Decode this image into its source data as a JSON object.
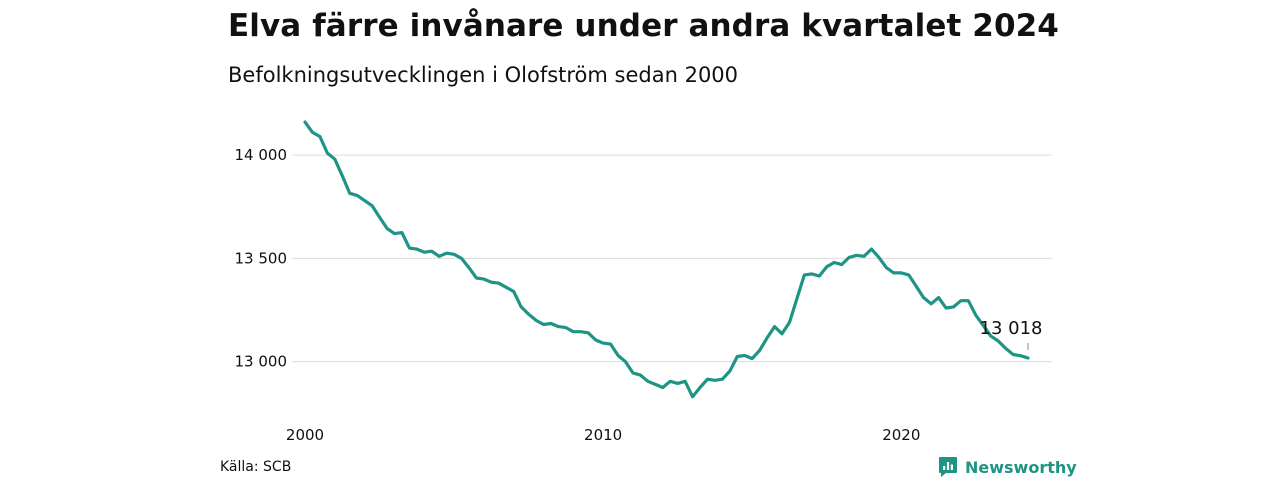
{
  "title": "Elva färre invånare under andra kvartalet 2024",
  "subtitle": "Befolkningsutvecklingen i Olofström sedan 2000",
  "source": "Källa: SCB",
  "brand": {
    "name": "Newsworthy",
    "icon": "newsworthy-logo-icon",
    "color": "#1e9485"
  },
  "chart_data": {
    "type": "line",
    "title": "Elva färre invånare under andra kvartalet 2024",
    "subtitle": "Befolkningsutvecklingen i Olofström sedan 2000",
    "xlabel": "",
    "ylabel": "",
    "xlim": [
      2000.0,
      2024.5
    ],
    "ylim": [
      12800,
      14170
    ],
    "x_ticks": [
      2000,
      2010,
      2020
    ],
    "x_tick_labels": [
      "2000",
      "2010",
      "2020"
    ],
    "y_ticks": [
      13000,
      13500,
      14000
    ],
    "y_tick_labels": [
      "13 000",
      "13 500",
      "14 000"
    ],
    "grid": "horizontal",
    "line_color": "#1e9485",
    "series": [
      {
        "x": [
          2000.0,
          2000.25,
          2000.5,
          2000.75,
          2001.0,
          2001.25,
          2001.5,
          2001.75,
          2002.0,
          2002.25,
          2002.5,
          2002.75,
          2003.0,
          2003.25,
          2003.5,
          2003.75,
          2004.0,
          2004.25,
          2004.5,
          2004.75,
          2005.0,
          2005.25,
          2005.5,
          2005.75,
          2006.0,
          2006.25,
          2006.5,
          2006.75,
          2007.0,
          2007.25,
          2007.5,
          2007.75,
          2008.0,
          2008.25,
          2008.5,
          2008.75,
          2009.0,
          2009.25,
          2009.5,
          2009.75,
          2010.0,
          2010.25,
          2010.5,
          2010.75,
          2011.0,
          2011.25,
          2011.5,
          2011.75,
          2012.0,
          2012.25,
          2012.5,
          2012.75,
          2013.0,
          2013.25,
          2013.5,
          2013.75,
          2014.0,
          2014.25,
          2014.5,
          2014.75,
          2015.0,
          2015.25,
          2015.5,
          2015.75,
          2016.0,
          2016.25,
          2016.5,
          2016.75,
          2017.0,
          2017.25,
          2017.5,
          2017.75,
          2018.0,
          2018.25,
          2018.5,
          2018.75,
          2019.0,
          2019.25,
          2019.5,
          2019.75,
          2020.0,
          2020.25,
          2020.5,
          2020.75,
          2021.0,
          2021.25,
          2021.5,
          2021.75,
          2022.0,
          2022.25,
          2022.5,
          2022.75,
          2023.0,
          2023.25,
          2023.5,
          2023.75,
          2024.0,
          2024.25
        ],
        "values": [
          14160,
          14110,
          14090,
          14010,
          13980,
          13900,
          13815,
          13805,
          13780,
          13755,
          13700,
          13645,
          13620,
          13625,
          13550,
          13545,
          13530,
          13535,
          13510,
          13525,
          13520,
          13500,
          13455,
          13405,
          13400,
          13385,
          13380,
          13360,
          13340,
          13265,
          13230,
          13200,
          13180,
          13185,
          13170,
          13165,
          13145,
          13145,
          13140,
          13105,
          13090,
          13085,
          13030,
          13000,
          12945,
          12935,
          12905,
          12890,
          12875,
          12905,
          12895,
          12905,
          12830,
          12875,
          12915,
          12910,
          12915,
          12955,
          13025,
          13030,
          13015,
          13055,
          13115,
          13170,
          13135,
          13190,
          13305,
          13420,
          13425,
          13415,
          13460,
          13480,
          13470,
          13505,
          13515,
          13510,
          13545,
          13505,
          13455,
          13430,
          13430,
          13420,
          13365,
          13310,
          13280,
          13310,
          13260,
          13265,
          13295,
          13295,
          13225,
          13175,
          13125,
          13100,
          13065,
          13035,
          13029,
          13018
        ]
      }
    ],
    "annotation": {
      "x": 2024.25,
      "value": 13018,
      "label": "13 018"
    }
  }
}
